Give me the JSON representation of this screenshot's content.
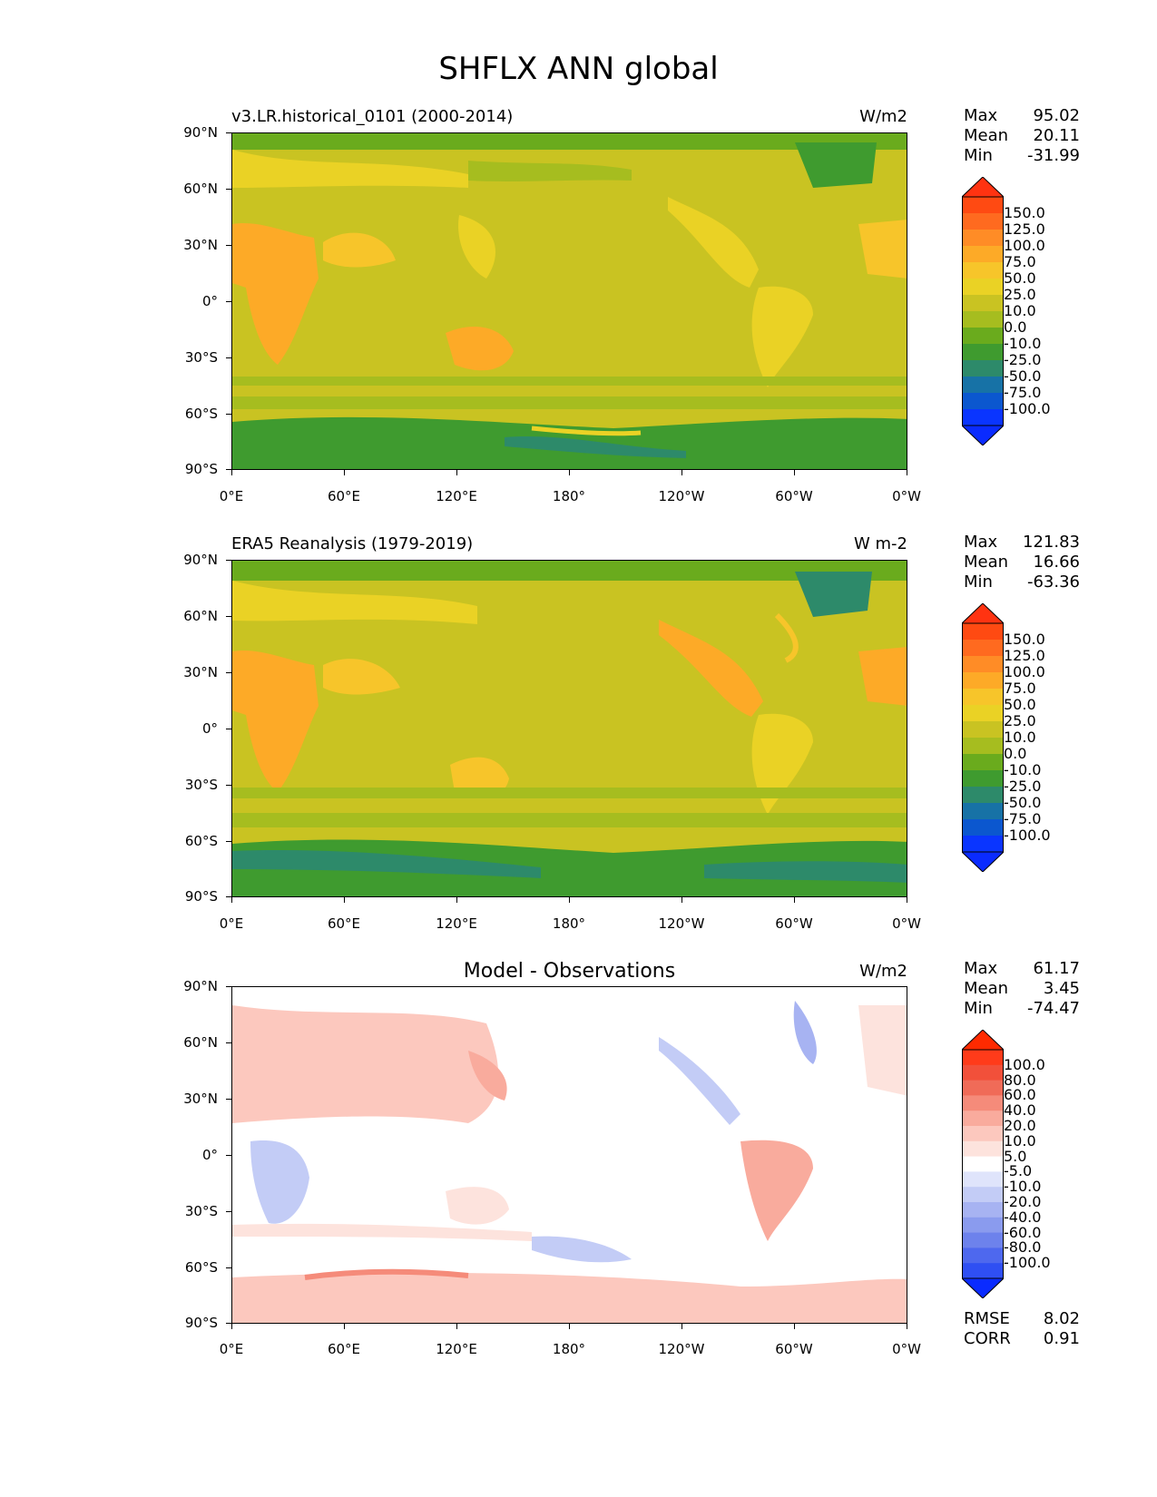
{
  "figure": {
    "title": "SHFLX ANN global"
  },
  "axes": {
    "lat_labels": [
      "90°N",
      "60°N",
      "30°N",
      "0°",
      "30°S",
      "60°S",
      "90°S"
    ],
    "lon_labels": [
      "0°E",
      "60°E",
      "120°E",
      "180°",
      "120°W",
      "60°W",
      "0°W"
    ]
  },
  "panels": [
    {
      "title_left": "v3.LR.historical_0101 (2000-2014)",
      "title_center": "",
      "units": "W/m2",
      "stats": [
        {
          "label": "Max",
          "value": "95.02"
        },
        {
          "label": "Mean",
          "value": "20.11"
        },
        {
          "label": "Min",
          "value": "-31.99"
        }
      ],
      "colorbar": {
        "labels": [
          "150.0",
          "125.0",
          "100.0",
          "75.0",
          "50.0",
          "25.0",
          "10.0",
          "0.0",
          "-10.0",
          "-25.0",
          "-50.0",
          "-75.0",
          "-100.0"
        ],
        "colors": [
          "#ff4a12",
          "#ff6a1f",
          "#ff8c26",
          "#fdaa27",
          "#f7c52a",
          "#ead225",
          "#c9c322",
          "#a6bd1f",
          "#6aab1d",
          "#3f9b2f",
          "#2d8a6a",
          "#1772a6",
          "#0b57cf",
          "#0a35ff"
        ],
        "end_colors": {
          "top": "#ff3311",
          "bottom": "#0a2bff"
        }
      }
    },
    {
      "title_left": "ERA5 Reanalysis (1979-2019)",
      "title_center": "",
      "units": "W m-2",
      "stats": [
        {
          "label": "Max",
          "value": "121.83"
        },
        {
          "label": "Mean",
          "value": "16.66"
        },
        {
          "label": "Min",
          "value": "-63.36"
        }
      ],
      "colorbar": {
        "labels": [
          "150.0",
          "125.0",
          "100.0",
          "75.0",
          "50.0",
          "25.0",
          "10.0",
          "0.0",
          "-10.0",
          "-25.0",
          "-50.0",
          "-75.0",
          "-100.0"
        ],
        "colors": [
          "#ff4a12",
          "#ff6a1f",
          "#ff8c26",
          "#fdaa27",
          "#f7c52a",
          "#ead225",
          "#c9c322",
          "#a6bd1f",
          "#6aab1d",
          "#3f9b2f",
          "#2d8a6a",
          "#1772a6",
          "#0b57cf",
          "#0a35ff"
        ],
        "end_colors": {
          "top": "#ff3311",
          "bottom": "#0a2bff"
        }
      }
    },
    {
      "title_left": "",
      "title_center": "Model - Observations",
      "units": "W/m2",
      "stats": [
        {
          "label": "Max",
          "value": "61.17"
        },
        {
          "label": "Mean",
          "value": "3.45"
        },
        {
          "label": "Min",
          "value": "-74.47"
        }
      ],
      "colorbar": {
        "labels": [
          "100.0",
          "80.0",
          "60.0",
          "40.0",
          "20.0",
          "10.0",
          "5.0",
          "-5.0",
          "-10.0",
          "-20.0",
          "-40.0",
          "-60.0",
          "-80.0",
          "-100.0"
        ],
        "colors": [
          "#ff3b1a",
          "#f2503a",
          "#f06b58",
          "#f58b7a",
          "#f9ab9d",
          "#fcc8be",
          "#fde3dd",
          "#ffffff",
          "#dfe4fb",
          "#c3ccf6",
          "#a7b3f2",
          "#8a9bee",
          "#6d82ec",
          "#4e68ee",
          "#2f4ff3"
        ],
        "end_colors": {
          "top": "#ff2a00",
          "bottom": "#0a2bff"
        }
      },
      "metrics": [
        {
          "label": "RMSE",
          "value": "8.02"
        },
        {
          "label": "CORR",
          "value": "0.91"
        }
      ]
    }
  ]
}
